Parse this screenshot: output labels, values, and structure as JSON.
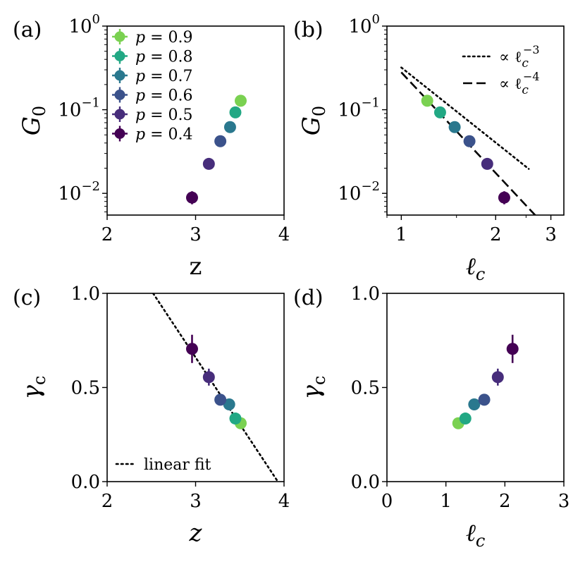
{
  "colors": {
    "p0.9": "#7ad151",
    "p0.8": "#22a884",
    "p0.7": "#2a788e",
    "p0.6": "#3b528b",
    "p0.5": "#472d7b",
    "p0.4": "#440154"
  },
  "chart_data": [
    {
      "id": "a",
      "panel_label": "(a)",
      "type": "scatter",
      "xlabel": "z",
      "ylabel": "G",
      "ylabel_sub": "0",
      "xscale": "linear",
      "yscale": "log",
      "xlim": [
        2,
        4
      ],
      "ylim": [
        0.0055,
        1.0
      ],
      "xticks": [
        2,
        3,
        4
      ],
      "xtick_labels": [
        "2",
        "3",
        "4"
      ],
      "yticks": [
        0.01,
        0.1,
        1
      ],
      "ytick_base": "10",
      "ytick_exps": [
        "−2",
        "−1",
        "0"
      ],
      "legend_position": "upper-left",
      "series": [
        {
          "name": "p = 0.9",
          "p": "0.9",
          "color": "#7ad151",
          "x": 3.51,
          "y": 0.128,
          "yerr": null
        },
        {
          "name": "p = 0.8",
          "p": "0.8",
          "color": "#22a884",
          "x": 3.45,
          "y": 0.093,
          "yerr": null
        },
        {
          "name": "p = 0.7",
          "p": "0.7",
          "color": "#2a788e",
          "x": 3.39,
          "y": 0.062,
          "yerr": null
        },
        {
          "name": "p = 0.6",
          "p": "0.6",
          "color": "#3b528b",
          "x": 3.28,
          "y": 0.042,
          "yerr": null
        },
        {
          "name": "p = 0.5",
          "p": "0.5",
          "color": "#472d7b",
          "x": 3.15,
          "y": 0.0225,
          "yerr": null
        },
        {
          "name": "p = 0.4",
          "p": "0.4",
          "color": "#440154",
          "x": 2.96,
          "y": 0.0089,
          "yerr": [
            0.0074,
            0.0106
          ]
        }
      ]
    },
    {
      "id": "b",
      "panel_label": "(b)",
      "type": "scatter",
      "xlabel": "ℓ",
      "xlabel_sub": "c",
      "ylabel": "G",
      "ylabel_sub": "0",
      "xscale": "log",
      "yscale": "log",
      "xlim": [
        0.9,
        3.3
      ],
      "ylim": [
        0.0055,
        1.0
      ],
      "xticks": [
        1,
        2,
        3
      ],
      "xtick_labels": [
        "1",
        "2",
        "3"
      ],
      "yticks": [
        0.01,
        0.1,
        1
      ],
      "ytick_base": "10",
      "ytick_exps": [
        "−2",
        "−1",
        "0"
      ],
      "legend_position": "upper-right",
      "reference_lines": [
        {
          "label": "∝ ℓ",
          "label_sub": "c",
          "label_sup": "−3",
          "style": "dotted",
          "x": [
            1.0,
            2.55
          ],
          "y": [
            0.32,
            0.0196
          ]
        },
        {
          "label": "∝ ℓ",
          "label_sub": "c",
          "label_sup": "−4",
          "style": "dashed",
          "x": [
            1.0,
            2.75
          ],
          "y": [
            0.28,
            0.0049
          ]
        }
      ],
      "series": [
        {
          "p": "0.9",
          "color": "#7ad151",
          "x": 1.21,
          "y": 0.128,
          "yerr": null
        },
        {
          "p": "0.8",
          "color": "#22a884",
          "x": 1.33,
          "y": 0.093,
          "yerr": null
        },
        {
          "p": "0.7",
          "color": "#2a788e",
          "x": 1.48,
          "y": 0.062,
          "yerr": null
        },
        {
          "p": "0.6",
          "color": "#3b528b",
          "x": 1.65,
          "y": 0.042,
          "yerr": null
        },
        {
          "p": "0.5",
          "color": "#472d7b",
          "x": 1.88,
          "y": 0.0225,
          "yerr": null
        },
        {
          "p": "0.4",
          "color": "#440154",
          "x": 2.13,
          "y": 0.0089,
          "yerr": [
            0.0074,
            0.0106
          ]
        }
      ]
    },
    {
      "id": "c",
      "panel_label": "(c)",
      "type": "scatter",
      "xlabel": "z",
      "ylabel": "γ",
      "ylabel_sub": "c",
      "xscale": "linear",
      "yscale": "linear",
      "xlim": [
        2,
        4
      ],
      "ylim": [
        0,
        1
      ],
      "xticks": [
        2,
        3,
        4
      ],
      "xtick_labels": [
        "2",
        "3",
        "4"
      ],
      "yticks": [
        0,
        0.5,
        1.0
      ],
      "ytick_labels": [
        "0.0",
        "0.5",
        "1.0"
      ],
      "legend_position": "lower-left",
      "reference_lines": [
        {
          "label": "linear fit",
          "style": "dotted",
          "x": [
            2.52,
            3.93
          ],
          "y": [
            1.0,
            0.0
          ]
        }
      ],
      "series": [
        {
          "p": "0.9",
          "color": "#7ad151",
          "x": 3.51,
          "y": 0.31,
          "yerr": null
        },
        {
          "p": "0.8",
          "color": "#22a884",
          "x": 3.45,
          "y": 0.335,
          "yerr": null
        },
        {
          "p": "0.7",
          "color": "#2a788e",
          "x": 3.38,
          "y": 0.41,
          "yerr": null
        },
        {
          "p": "0.6",
          "color": "#3b528b",
          "x": 3.28,
          "y": 0.435,
          "yerr": null
        },
        {
          "p": "0.5",
          "color": "#472d7b",
          "x": 3.15,
          "y": 0.555,
          "yerr": [
            0.51,
            0.6
          ]
        },
        {
          "p": "0.4",
          "color": "#440154",
          "x": 2.96,
          "y": 0.705,
          "yerr": [
            0.63,
            0.78
          ]
        }
      ]
    },
    {
      "id": "d",
      "panel_label": "(d)",
      "type": "scatter",
      "xlabel": "ℓ",
      "xlabel_sub": "c",
      "ylabel": "γ",
      "ylabel_sub": "c",
      "xscale": "linear",
      "yscale": "linear",
      "xlim": [
        0,
        3
      ],
      "ylim": [
        0,
        1
      ],
      "xticks": [
        0,
        1,
        2,
        3
      ],
      "xtick_labels": [
        "0",
        "1",
        "2",
        "3"
      ],
      "yticks": [
        0,
        0.5,
        1.0
      ],
      "ytick_labels": [
        "0.0",
        "0.5",
        "1.0"
      ],
      "series": [
        {
          "p": "0.9",
          "color": "#7ad151",
          "x": 1.21,
          "y": 0.31,
          "yerr": null
        },
        {
          "p": "0.8",
          "color": "#22a884",
          "x": 1.33,
          "y": 0.335,
          "yerr": null
        },
        {
          "p": "0.7",
          "color": "#2a788e",
          "x": 1.48,
          "y": 0.41,
          "yerr": null
        },
        {
          "p": "0.6",
          "color": "#3b528b",
          "x": 1.65,
          "y": 0.435,
          "yerr": null
        },
        {
          "p": "0.5",
          "color": "#472d7b",
          "x": 1.88,
          "y": 0.555,
          "yerr": [
            0.51,
            0.6
          ]
        },
        {
          "p": "0.4",
          "color": "#440154",
          "x": 2.13,
          "y": 0.705,
          "yerr": [
            0.63,
            0.78
          ]
        }
      ]
    }
  ]
}
